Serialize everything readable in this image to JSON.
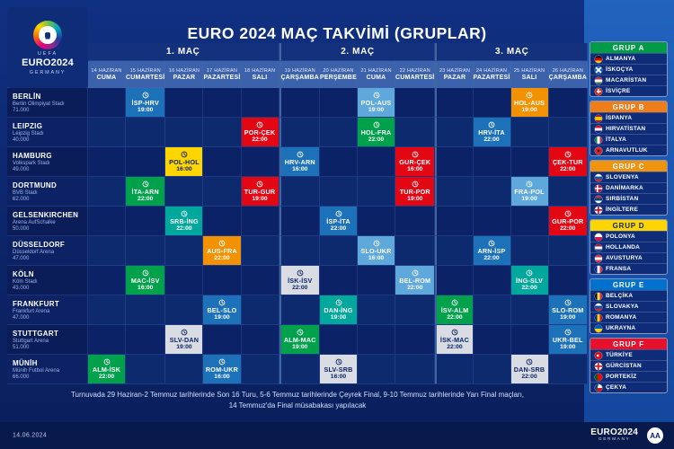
{
  "page_title": "EURO 2024 MAÇ TAKVİMİ (GRUPLAR)",
  "logo": {
    "uefa": "UEFA",
    "euro": "EURO2024",
    "germany": "GERMANY"
  },
  "chart_data": {
    "type": "table",
    "title": "EURO 2024 MAÇ TAKVİMİ (GRUPLAR)",
    "matchday_headers": [
      "1. MAÇ",
      "2. MAÇ",
      "3. MAÇ"
    ],
    "matchday_spans": [
      5,
      4,
      4
    ],
    "dates": [
      {
        "day": "14 HAZİRAN",
        "weekday": "CUMA"
      },
      {
        "day": "15 HAZİRAN",
        "weekday": "CUMARTESİ"
      },
      {
        "day": "16 HAZİRAN",
        "weekday": "PAZAR"
      },
      {
        "day": "17 HAZİRAN",
        "weekday": "PAZARTESİ"
      },
      {
        "day": "18 HAZİRAN",
        "weekday": "SALI"
      },
      {
        "day": "19 HAZİRAN",
        "weekday": "ÇARŞAMBA"
      },
      {
        "day": "20 HAZİRAN",
        "weekday": "PERŞEMBE"
      },
      {
        "day": "21 HAZİRAN",
        "weekday": "CUMA"
      },
      {
        "day": "22 HAZİRAN",
        "weekday": "CUMARTESİ"
      },
      {
        "day": "23 HAZİRAN",
        "weekday": "PAZAR"
      },
      {
        "day": "24 HAZİRAN",
        "weekday": "PAZARTESİ"
      },
      {
        "day": "25 HAZİRAN",
        "weekday": "SALI"
      },
      {
        "day": "26 HAZİRAN",
        "weekday": "ÇARŞAMBA"
      }
    ],
    "venues": [
      {
        "city": "BERLİN",
        "stadium": "Berlin Olimpiyat Stadı",
        "capacity": "71.000"
      },
      {
        "city": "LEIPZIG",
        "stadium": "Leipzig Stadı",
        "capacity": "40.000"
      },
      {
        "city": "HAMBURG",
        "stadium": "Volkspark Stadı",
        "capacity": "49.000"
      },
      {
        "city": "DORTMUND",
        "stadium": "BVB Stadı",
        "capacity": "62.000"
      },
      {
        "city": "GELSENKIRCHEN",
        "stadium": "Arena AufSchalke",
        "capacity": "50.000"
      },
      {
        "city": "DÜSSELDORF",
        "stadium": "Düsseldorf Arena",
        "capacity": "47.000"
      },
      {
        "city": "KÖLN",
        "stadium": "Köln Stadı",
        "capacity": "43.000"
      },
      {
        "city": "FRANKFURT",
        "stadium": "Frankfurt Arena",
        "capacity": "47.000"
      },
      {
        "city": "STUTTGART",
        "stadium": "Stuttgart Arena",
        "capacity": "51.000"
      },
      {
        "city": "MÜNİH",
        "stadium": "Münih Futbol Arena",
        "capacity": "66.000"
      }
    ],
    "matches": [
      {
        "venue": 9,
        "date": 0,
        "teams": "ALM-İSK",
        "time": "22:00",
        "color": "green"
      },
      {
        "venue": 0,
        "date": 1,
        "teams": "İSP-HRV",
        "time": "19:00",
        "color": "blue"
      },
      {
        "venue": 3,
        "date": 1,
        "teams": "İTA-ARN",
        "time": "22:00",
        "color": "green"
      },
      {
        "venue": 6,
        "date": 1,
        "teams": "MAC-İSV",
        "time": "16:00",
        "color": "green"
      },
      {
        "venue": 2,
        "date": 2,
        "teams": "POL-HOL",
        "time": "16:00",
        "color": "yellow"
      },
      {
        "venue": 4,
        "date": 2,
        "teams": "SRB-İNG",
        "time": "22:00",
        "color": "teal"
      },
      {
        "venue": 8,
        "date": 2,
        "teams": "SLV-DAN",
        "time": "19:00",
        "color": "silver"
      },
      {
        "venue": 5,
        "date": 3,
        "teams": "AUS-FRA",
        "time": "22:00",
        "color": "orange"
      },
      {
        "venue": 7,
        "date": 3,
        "teams": "BEL-SLO",
        "time": "19:00",
        "color": "blue"
      },
      {
        "venue": 9,
        "date": 3,
        "teams": "ROM-UKR",
        "time": "16:00",
        "color": "blue"
      },
      {
        "venue": 1,
        "date": 4,
        "teams": "POR-ÇEK",
        "time": "22:00",
        "color": "red"
      },
      {
        "venue": 3,
        "date": 4,
        "teams": "TUR-GUR",
        "time": "19:00",
        "color": "red"
      },
      {
        "venue": 2,
        "date": 5,
        "teams": "HRV-ARN",
        "time": "16:00",
        "color": "blue"
      },
      {
        "venue": 6,
        "date": 5,
        "teams": "İSK-İSV",
        "time": "22:00",
        "color": "silver"
      },
      {
        "venue": 8,
        "date": 5,
        "teams": "ALM-MAC",
        "time": "19:00",
        "color": "green"
      },
      {
        "venue": 4,
        "date": 6,
        "teams": "İSP-İTA",
        "time": "22:00",
        "color": "blue"
      },
      {
        "venue": 7,
        "date": 6,
        "teams": "DAN-İNG",
        "time": "19:00",
        "color": "teal"
      },
      {
        "venue": 9,
        "date": 6,
        "teams": "SLV-SRB",
        "time": "16:00",
        "color": "silver"
      },
      {
        "venue": 0,
        "date": 7,
        "teams": "POL-AUS",
        "time": "19:00",
        "color": "skyblue"
      },
      {
        "venue": 1,
        "date": 7,
        "teams": "HOL-FRA",
        "time": "22:00",
        "color": "green"
      },
      {
        "venue": 5,
        "date": 7,
        "teams": "SLO-UKR",
        "time": "16:00",
        "color": "skyblue"
      },
      {
        "venue": 2,
        "date": 8,
        "teams": "GUR-ÇEK",
        "time": "16:00",
        "color": "red"
      },
      {
        "venue": 3,
        "date": 8,
        "teams": "TUR-POR",
        "time": "19:00",
        "color": "red"
      },
      {
        "venue": 6,
        "date": 8,
        "teams": "BEL-ROM",
        "time": "22:00",
        "color": "skyblue"
      },
      {
        "venue": 7,
        "date": 9,
        "teams": "İSV-ALM",
        "time": "22:00",
        "color": "green"
      },
      {
        "venue": 8,
        "date": 9,
        "teams": "İSK-MAC",
        "time": "22:00",
        "color": "silver"
      },
      {
        "venue": 1,
        "date": 10,
        "teams": "HRV-İTA",
        "time": "22:00",
        "color": "blue"
      },
      {
        "venue": 5,
        "date": 10,
        "teams": "ARN-İSP",
        "time": "22:00",
        "color": "blue"
      },
      {
        "venue": 0,
        "date": 11,
        "teams": "HOL-AUS",
        "time": "19:00",
        "color": "orange"
      },
      {
        "venue": 3,
        "date": 11,
        "teams": "FRA-POL",
        "time": "19:00",
        "color": "skyblue"
      },
      {
        "venue": 6,
        "date": 11,
        "teams": "İNG-SLV",
        "time": "22:00",
        "color": "teal"
      },
      {
        "venue": 9,
        "date": 11,
        "teams": "DAN-SRB",
        "time": "22:00",
        "color": "silver"
      },
      {
        "venue": 2,
        "date": 12,
        "teams": "ÇEK-TUR",
        "time": "22:00",
        "color": "red"
      },
      {
        "venue": 4,
        "date": 12,
        "teams": "GUR-POR",
        "time": "22:00",
        "color": "red"
      },
      {
        "venue": 7,
        "date": 12,
        "teams": "SLO-ROM",
        "time": "19:00",
        "color": "blue"
      },
      {
        "venue": 8,
        "date": 12,
        "teams": "UKR-BEL",
        "time": "19:00",
        "color": "blue"
      }
    ]
  },
  "colors": {
    "green": {
      "bg": "#00a14b",
      "text": "#ffffff"
    },
    "teal": {
      "bg": "#00a79d",
      "text": "#ffffff"
    },
    "blue": {
      "bg": "#1d71b8",
      "text": "#ffffff"
    },
    "skyblue": {
      "bg": "#5fa8dc",
      "text": "#ffffff"
    },
    "red": {
      "bg": "#e30613",
      "text": "#ffffff"
    },
    "orange": {
      "bg": "#f39200",
      "text": "#ffffff"
    },
    "yellow": {
      "bg": "#ffd500",
      "text": "#0b2364"
    },
    "silver": {
      "bg": "#d9dde3",
      "text": "#0b2364"
    }
  },
  "groups": [
    {
      "name": "GRUP A",
      "color": "#009b48",
      "text_color": "#ffffff",
      "teams": [
        {
          "name": "ALMANYA",
          "flag": "linear-gradient(180deg,#000 0 33%,#dd0000 33% 66%,#ffce00 66%)"
        },
        {
          "name": "İSKOÇYA",
          "flag": "linear-gradient(45deg,transparent 42%,#fff 42% 58%,transparent 58%),linear-gradient(135deg,transparent 42%,#fff 42% 58%,transparent 58%) #0065bd"
        },
        {
          "name": "MACARİSTAN",
          "flag": "linear-gradient(180deg,#ce2939 0 33%,#fff 33% 66%,#477050 66%)"
        },
        {
          "name": "İSVİÇRE",
          "flag": "linear-gradient(#fff,#fff) 50% 50%/60% 20% no-repeat,linear-gradient(#fff,#fff) 50% 50%/20% 60% no-repeat #d52b1e"
        }
      ]
    },
    {
      "name": "GRUP B",
      "color": "#ef7d1a",
      "text_color": "#ffffff",
      "teams": [
        {
          "name": "İSPANYA",
          "flag": "linear-gradient(180deg,#aa151b 0 25%,#f1bf00 25% 75%,#aa151b 75%)"
        },
        {
          "name": "HIRVATİSTAN",
          "flag": "linear-gradient(180deg,#ff0000 0 33%,#fff 33% 66%,#171796 66%)"
        },
        {
          "name": "İTALYA",
          "flag": "linear-gradient(90deg,#009246 0 33%,#fff 33% 66%,#ce2b37 66%)"
        },
        {
          "name": "ARNAVUTLUK",
          "flag": "radial-gradient(circle at 50% 50%,#1a1a1a 0 24%,transparent 25%) #e41e20"
        }
      ]
    },
    {
      "name": "GRUP C",
      "color": "#f0930f",
      "text_color": "#ffffff",
      "teams": [
        {
          "name": "SLOVENYA",
          "flag": "linear-gradient(180deg,#fff 0 33%,#005da4 33% 66%,#ed1c24 66%)"
        },
        {
          "name": "DANİMARKA",
          "flag": "linear-gradient(#fff,#fff) 0 50%/100% 20% no-repeat,linear-gradient(#fff,#fff) 35% 0/20% 100% no-repeat #c8102e"
        },
        {
          "name": "SIRBİSTAN",
          "flag": "linear-gradient(180deg,#c6363c 0 33%,#0c4076 33% 66%,#fff 66%)"
        },
        {
          "name": "İNGİLTERE",
          "flag": "linear-gradient(#ce1124,#ce1124) 50% 50%/100% 22% no-repeat,linear-gradient(#ce1124,#ce1124) 50% 50%/22% 100% no-repeat #fff"
        }
      ]
    },
    {
      "name": "GRUP D",
      "color": "#ffd500",
      "text_color": "#0b2364",
      "teams": [
        {
          "name": "POLONYA",
          "flag": "linear-gradient(180deg,#fff 0 50%,#dc143c 50%)"
        },
        {
          "name": "HOLLANDA",
          "flag": "linear-gradient(180deg,#ae1c28 0 33%,#fff 33% 66%,#21468b 66%)"
        },
        {
          "name": "AVUSTURYA",
          "flag": "linear-gradient(180deg,#ed2939 0 33%,#fff 33% 66%,#ed2939 66%)"
        },
        {
          "name": "FRANSA",
          "flag": "linear-gradient(90deg,#002395 0 33%,#fff 33% 66%,#ed2939 66%)"
        }
      ]
    },
    {
      "name": "GRUP E",
      "color": "#0072ce",
      "text_color": "#ffffff",
      "teams": [
        {
          "name": "BELÇİKA",
          "flag": "linear-gradient(90deg,#000 0 33%,#fae042 33% 66%,#ed2939 66%)"
        },
        {
          "name": "SLOVAKYA",
          "flag": "linear-gradient(180deg,#fff 0 33%,#0b4ea2 33% 66%,#ee1c25 66%)"
        },
        {
          "name": "ROMANYA",
          "flag": "linear-gradient(90deg,#002b7f 0 33%,#fcd116 33% 66%,#ce1126 66%)"
        },
        {
          "name": "UKRAYNA",
          "flag": "linear-gradient(180deg,#005bbb 0 50%,#ffd500 50%)"
        }
      ]
    },
    {
      "name": "GRUP F",
      "color": "#e8112d",
      "text_color": "#ffffff",
      "teams": [
        {
          "name": "TÜRKİYE",
          "flag": "radial-gradient(circle at 40% 50%,#fff 0 20%,transparent 21%) #e30a17"
        },
        {
          "name": "GÜRCİSTAN",
          "flag": "linear-gradient(#ff0000,#ff0000) 50% 50%/100% 20% no-repeat,linear-gradient(#ff0000,#ff0000) 50% 50%/20% 100% no-repeat #fff"
        },
        {
          "name": "PORTEKİZ",
          "flag": "linear-gradient(90deg,#006600 0 40%,#ff0000 40%)"
        },
        {
          "name": "ÇEKYA",
          "flag": "linear-gradient(105deg,#11457e 0 38%,transparent 38%),linear-gradient(180deg,#fff 0 50%,#d7141a 50%)"
        }
      ]
    }
  ],
  "footnote_line1": "Turnuvada 29 Haziran-2 Temmuz tarihlerinde Son 16 Turu, 5-6 Temmuz tarihlerinde Çeyrek Final, 9-10 Temmuz tarihlerinde Yarı Final maçları,",
  "footnote_line2": "14 Temmuz'da Final müsabakası yapılacak",
  "footer": {
    "date": "14.06.2024",
    "euro": "EURO2024",
    "germany": "GERMANY",
    "agency": "AA"
  }
}
